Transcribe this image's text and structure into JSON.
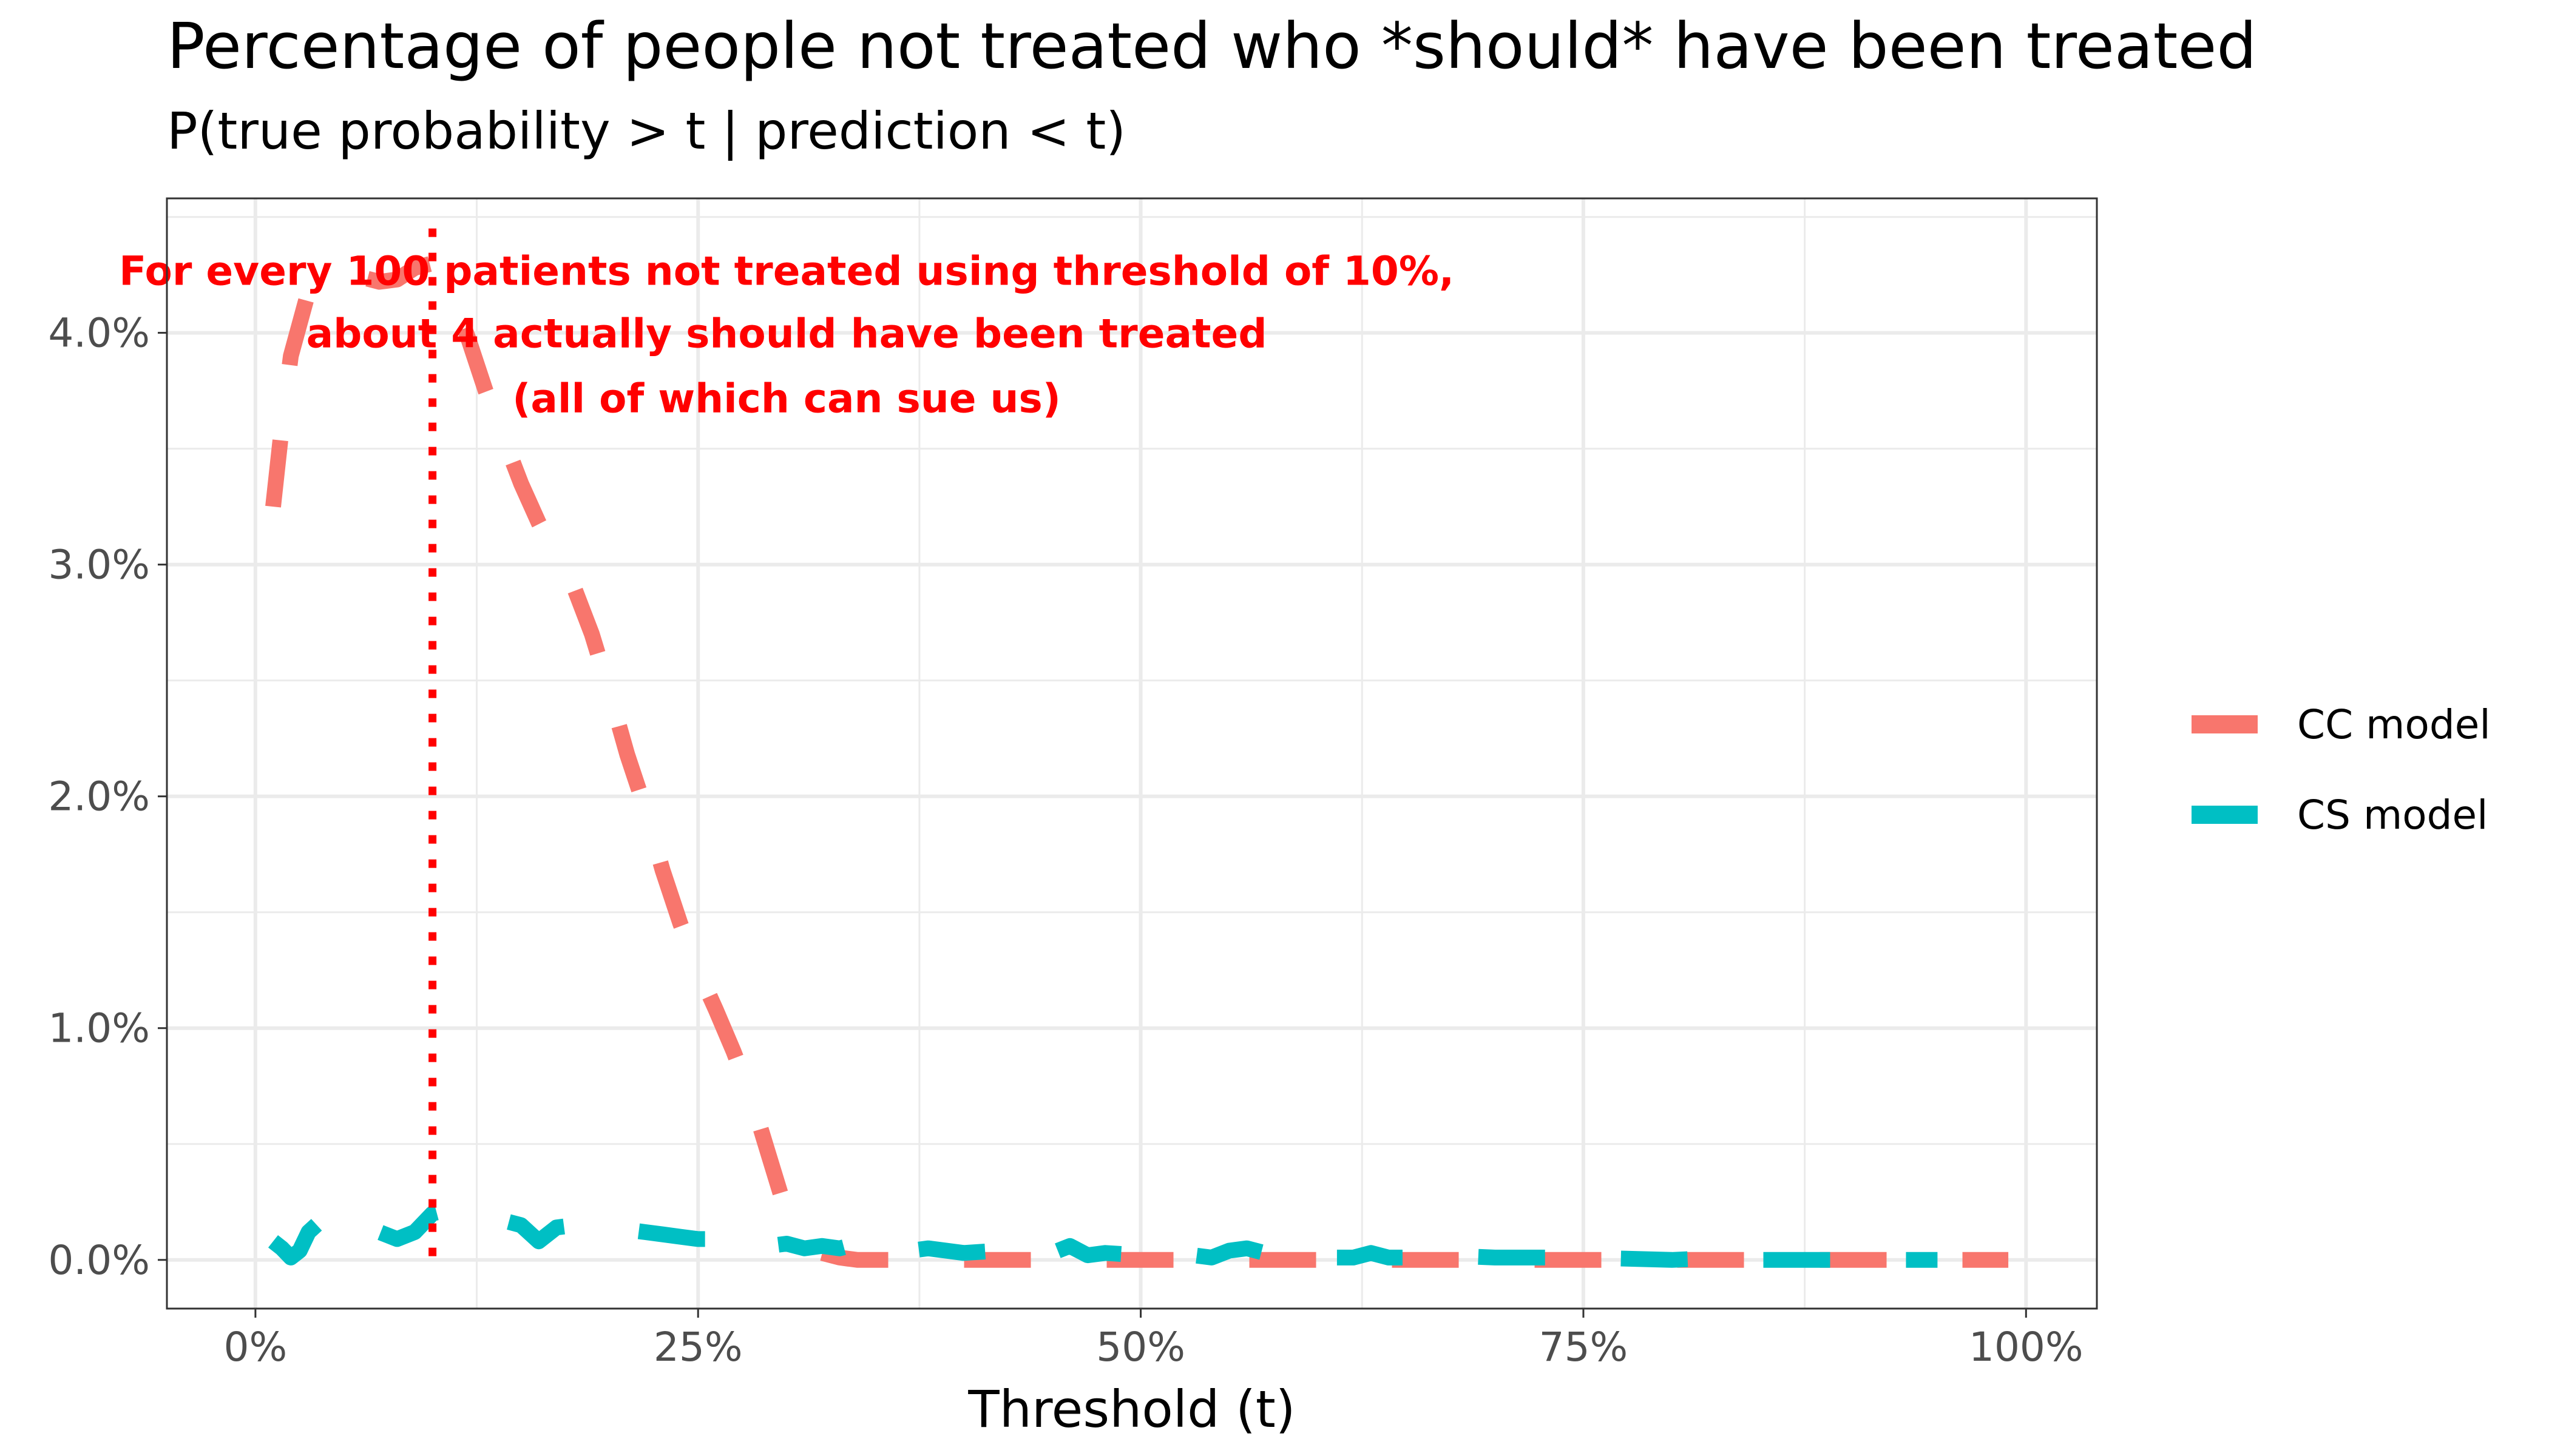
{
  "chart_data": {
    "type": "line",
    "title": "Percentage of people not treated who *should* have been treated",
    "subtitle": "P(true probability > t | prediction < t)",
    "xlabel": "Threshold (t)",
    "ylabel": "",
    "xlim": [
      -0.05,
      1.04
    ],
    "ylim": [
      -0.0021,
      0.0458
    ],
    "x_ticks": [
      0,
      0.25,
      0.5,
      0.75,
      1.0
    ],
    "x_tick_labels": [
      "0%",
      "25%",
      "50%",
      "75%",
      "100%"
    ],
    "y_ticks": [
      0,
      0.01,
      0.02,
      0.03,
      0.04
    ],
    "y_tick_labels": [
      "0.0%",
      "1.0%",
      "2.0%",
      "3.0%",
      "4.0%"
    ],
    "grid": true,
    "legend_position": "right",
    "series": [
      {
        "name": "CC model",
        "color": "#F8766D",
        "dash": "dashed",
        "points": [
          [
            0.01,
            0.0325
          ],
          [
            0.015,
            0.036
          ],
          [
            0.02,
            0.039
          ],
          [
            0.03,
            0.0418
          ],
          [
            0.04,
            0.0425
          ],
          [
            0.05,
            0.0426
          ],
          [
            0.06,
            0.0424
          ],
          [
            0.07,
            0.0422
          ],
          [
            0.08,
            0.0423
          ],
          [
            0.09,
            0.0428
          ],
          [
            0.1,
            0.043
          ],
          [
            0.11,
            0.0418
          ],
          [
            0.12,
            0.0398
          ],
          [
            0.13,
            0.0375
          ],
          [
            0.14,
            0.0355
          ],
          [
            0.15,
            0.0335
          ],
          [
            0.16,
            0.0318
          ],
          [
            0.17,
            0.0303
          ],
          [
            0.18,
            0.029
          ],
          [
            0.19,
            0.027
          ],
          [
            0.2,
            0.0245
          ],
          [
            0.21,
            0.0218
          ],
          [
            0.22,
            0.0195
          ],
          [
            0.23,
            0.0168
          ],
          [
            0.24,
            0.0145
          ],
          [
            0.25,
            0.0125
          ],
          [
            0.26,
            0.0108
          ],
          [
            0.27,
            0.009
          ],
          [
            0.28,
            0.007
          ],
          [
            0.29,
            0.0045
          ],
          [
            0.3,
            0.002
          ],
          [
            0.31,
            0.0008
          ],
          [
            0.32,
            0.0003
          ],
          [
            0.33,
            0.0001
          ],
          [
            0.34,
            0.0
          ],
          [
            0.4,
            0.0
          ],
          [
            0.5,
            0.0
          ],
          [
            0.6,
            0.0
          ],
          [
            0.7,
            0.0
          ],
          [
            0.8,
            0.0
          ],
          [
            0.9,
            0.0
          ],
          [
            0.99,
            0.0
          ]
        ]
      },
      {
        "name": "CS model",
        "color": "#00BFC4",
        "dash": "dashed",
        "points": [
          [
            0.01,
            0.0008
          ],
          [
            0.015,
            0.0005
          ],
          [
            0.02,
            0.0001
          ],
          [
            0.025,
            0.0004
          ],
          [
            0.03,
            0.0012
          ],
          [
            0.04,
            0.0019
          ],
          [
            0.05,
            0.0022
          ],
          [
            0.06,
            0.0018
          ],
          [
            0.07,
            0.0012
          ],
          [
            0.08,
            0.0009
          ],
          [
            0.09,
            0.0012
          ],
          [
            0.1,
            0.002
          ],
          [
            0.11,
            0.0022
          ],
          [
            0.12,
            0.0018
          ],
          [
            0.13,
            0.0016
          ],
          [
            0.14,
            0.0017
          ],
          [
            0.15,
            0.0015
          ],
          [
            0.16,
            0.0008
          ],
          [
            0.17,
            0.0014
          ],
          [
            0.18,
            0.0015
          ],
          [
            0.19,
            0.0013
          ],
          [
            0.2,
            0.0012
          ],
          [
            0.21,
            0.0013
          ],
          [
            0.22,
            0.0012
          ],
          [
            0.23,
            0.0011
          ],
          [
            0.24,
            0.001
          ],
          [
            0.25,
            0.0009
          ],
          [
            0.26,
            0.0009
          ],
          [
            0.27,
            0.0011
          ],
          [
            0.28,
            0.0008
          ],
          [
            0.29,
            0.0006
          ],
          [
            0.3,
            0.0007
          ],
          [
            0.31,
            0.0005
          ],
          [
            0.32,
            0.0006
          ],
          [
            0.33,
            0.0005
          ],
          [
            0.34,
            0.0007
          ],
          [
            0.35,
            0.0006
          ],
          [
            0.36,
            0.0005
          ],
          [
            0.37,
            0.0004
          ],
          [
            0.38,
            0.0005
          ],
          [
            0.4,
            0.0003
          ],
          [
            0.42,
            0.0004
          ],
          [
            0.43,
            0.0003
          ],
          [
            0.44,
            0.0006
          ],
          [
            0.45,
            0.0003
          ],
          [
            0.46,
            0.0006
          ],
          [
            0.47,
            0.0002
          ],
          [
            0.48,
            0.0003
          ],
          [
            0.5,
            0.0002
          ],
          [
            0.52,
            0.0003
          ],
          [
            0.53,
            0.0002
          ],
          [
            0.54,
            0.0001
          ],
          [
            0.55,
            0.0004
          ],
          [
            0.56,
            0.0005
          ],
          [
            0.57,
            0.0003
          ],
          [
            0.6,
            0.0001
          ],
          [
            0.62,
            0.0001
          ],
          [
            0.63,
            0.0003
          ],
          [
            0.64,
            0.0001
          ],
          [
            0.65,
            0.0001
          ],
          [
            0.67,
            0.0002
          ],
          [
            0.7,
            0.0001
          ],
          [
            0.75,
            0.0001
          ],
          [
            0.8,
            0.0
          ],
          [
            0.83,
            0.0001
          ],
          [
            0.85,
            0.0
          ],
          [
            0.9,
            0.0
          ],
          [
            0.95,
            0.0
          ]
        ]
      }
    ],
    "reference_lines": [
      {
        "orientation": "vertical",
        "x": 0.1,
        "color": "#FF0000",
        "style": "dotted"
      }
    ],
    "annotation": {
      "color": "#FF0000",
      "x": 0.3,
      "lines": [
        "For every 100 patients not treated using threshold of 10%,",
        "about 4 actually should have been treated",
        "(all of which can sue us)"
      ]
    }
  }
}
